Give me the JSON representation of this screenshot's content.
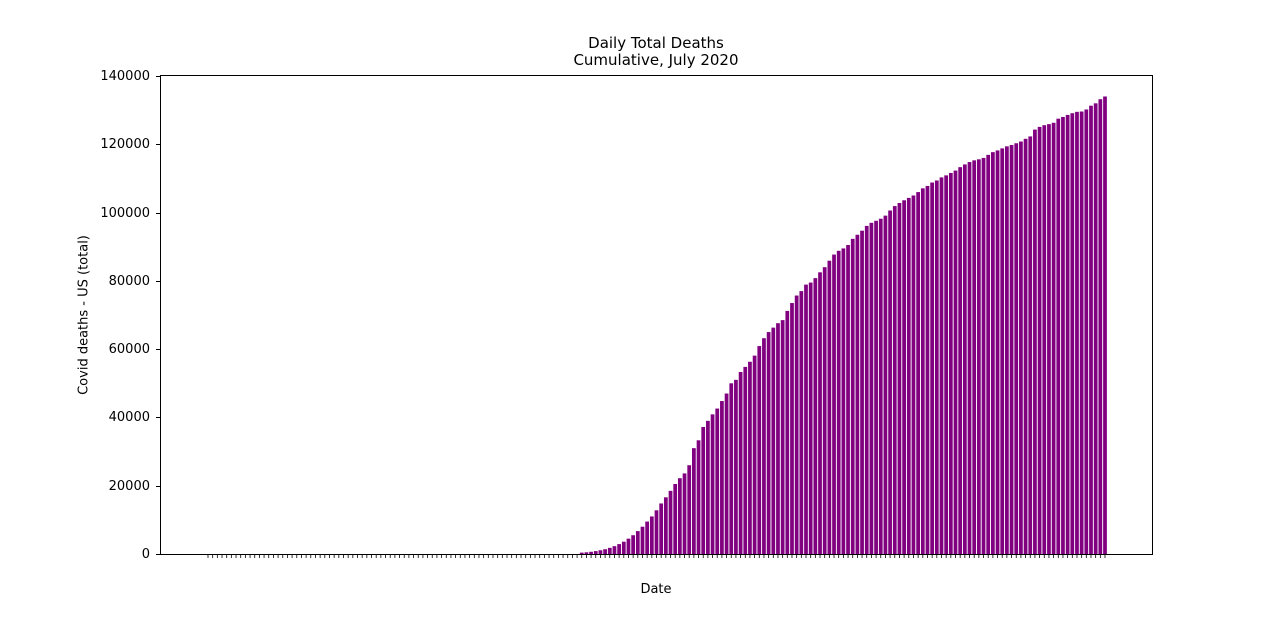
{
  "chart_data": {
    "type": "bar",
    "title": "Daily Total Deaths",
    "subtitle": "Cumulative, July 2020",
    "xlabel": "Date",
    "ylabel": "Covid deaths - US (total)",
    "ylim": [
      0,
      140000
    ],
    "yticks": [
      "0",
      "20000",
      "40000",
      "60000",
      "80000",
      "100000",
      "120000",
      "140000"
    ],
    "bar_color": "#800080",
    "grid": false,
    "legend": "none",
    "series": [
      {
        "values": [
          0,
          0,
          0,
          0,
          0,
          0,
          0,
          0,
          0,
          0,
          0,
          0,
          0,
          0,
          0,
          0,
          0,
          0,
          0,
          0,
          0,
          0,
          0,
          0,
          0,
          0,
          0,
          0,
          0,
          0,
          0,
          0,
          0,
          0,
          0,
          0,
          0,
          0,
          0,
          0,
          0,
          0,
          0,
          0,
          0,
          0,
          0,
          0,
          0,
          0,
          0,
          0,
          0,
          0,
          0,
          0,
          0,
          0,
          0,
          0,
          0,
          0,
          0,
          0,
          0,
          0,
          0,
          0,
          0,
          0,
          0,
          0,
          0,
          0,
          0,
          0,
          0,
          0,
          0,
          0,
          400,
          500,
          650,
          850,
          1100,
          1400,
          1800,
          2300,
          2900,
          3600,
          4500,
          5500,
          6700,
          8000,
          9500,
          11000,
          12800,
          14800,
          16600,
          18500,
          20500,
          22200,
          23600,
          26000,
          31000,
          33300,
          37200,
          39000,
          40900,
          42600,
          44800,
          47000,
          50000,
          51000,
          53300,
          54800,
          56300,
          58100,
          60900,
          63200,
          65000,
          66300,
          67600,
          68500,
          71200,
          73500,
          75700,
          77000,
          78900,
          79500,
          80800,
          82500,
          84000,
          85900,
          87700,
          88800,
          89500,
          90500,
          92300,
          93500,
          94700,
          96100,
          97000,
          97600,
          98200,
          99100,
          100600,
          101900,
          102800,
          103600,
          104300,
          105000,
          106000,
          107100,
          107800,
          108800,
          109400,
          110300,
          110900,
          111600,
          112300,
          113300,
          114100,
          114800,
          115300,
          115600,
          116000,
          116900,
          117700,
          118200,
          118800,
          119400,
          119800,
          120300,
          120800,
          121600,
          122300,
          124300,
          125100,
          125600,
          125900,
          126300,
          127500,
          128000,
          128600,
          129100,
          129500,
          129600,
          130200,
          131300,
          132000,
          133200,
          134000
        ]
      }
    ]
  }
}
